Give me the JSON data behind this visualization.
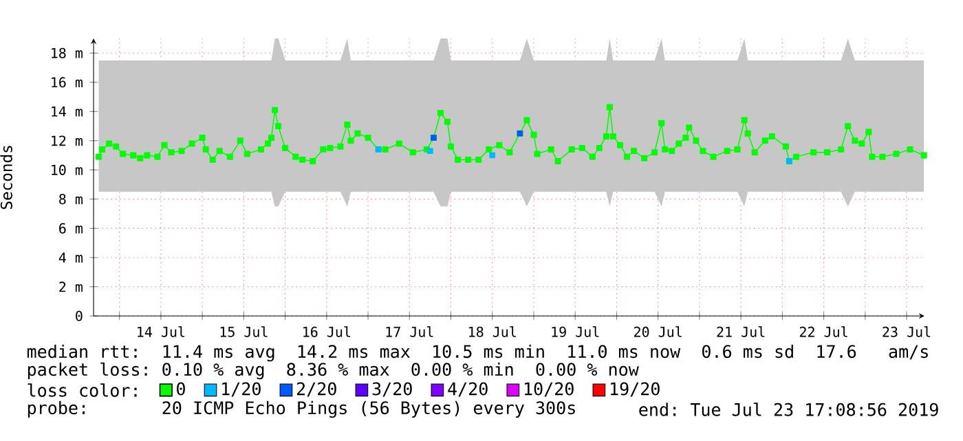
{
  "chart_data": {
    "type": "line",
    "ylabel": "Seconds",
    "legend_title": "loss color:",
    "annotations": [
      "median rtt:  11.4 ms avg  14.2 ms max  10.5 ms min  11.0 ms now  0.6 ms sd  17.6   am/s",
      "packet loss: 0.10 % avg  8.36 % max  0.00 % min  0.00 % now",
      "probe:       20 ICMP Echo Pings (56 Bytes) every 300s",
      "end: Tue Jul 23 17:08:56 2019"
    ],
    "xlim": [
      "2019-07-13T16:30",
      "2019-07-23T17:10"
    ],
    "ylim": [
      0,
      19
    ],
    "xticks": [
      {
        "value": "2019-07-14T00:00",
        "label": null
      },
      {
        "value": "2019-07-14T12:00",
        "label": "14 Jul"
      },
      {
        "value": "2019-07-15T00:00",
        "label": null
      },
      {
        "value": "2019-07-15T12:00",
        "label": "15 Jul"
      },
      {
        "value": "2019-07-16T00:00",
        "label": null
      },
      {
        "value": "2019-07-16T12:00",
        "label": "16 Jul"
      },
      {
        "value": "2019-07-17T00:00",
        "label": null
      },
      {
        "value": "2019-07-17T12:00",
        "label": "17 Jul"
      },
      {
        "value": "2019-07-18T00:00",
        "label": null
      },
      {
        "value": "2019-07-18T12:00",
        "label": "18 Jul"
      },
      {
        "value": "2019-07-19T00:00",
        "label": null
      },
      {
        "value": "2019-07-19T12:00",
        "label": "19 Jul"
      },
      {
        "value": "2019-07-20T00:00",
        "label": null
      },
      {
        "value": "2019-07-20T12:00",
        "label": "20 Jul"
      },
      {
        "value": "2019-07-21T00:00",
        "label": null
      },
      {
        "value": "2019-07-21T12:00",
        "label": "21 Jul"
      },
      {
        "value": "2019-07-22T00:00",
        "label": null
      },
      {
        "value": "2019-07-22T12:00",
        "label": "22 Jul"
      },
      {
        "value": "2019-07-23T00:00",
        "label": null
      },
      {
        "value": "2019-07-23T12:00",
        "label": "23 Jul"
      }
    ],
    "yticks": [
      0,
      {
        "value": 2,
        "label": "2 m"
      },
      {
        "value": 4,
        "label": "4 m"
      },
      {
        "value": 6,
        "label": "6 m"
      },
      {
        "value": 8,
        "label": "8 m"
      },
      {
        "value": 10,
        "label": "10 m"
      },
      {
        "value": 12,
        "label": "12 m"
      },
      {
        "value": 14,
        "label": "14 m"
      },
      {
        "value": 16,
        "label": "16 m"
      },
      {
        "value": 18,
        "label": "18 m"
      }
    ],
    "grid": true,
    "legend": "bottom",
    "marker": "square",
    "line_style": "solid",
    "series": [
      {
        "name": "0",
        "color": "#00ff00",
        "x": [
          "2019-07-13T18:00",
          "2019-07-13T19:00",
          "2019-07-13T21:00",
          "2019-07-13T23:00",
          "2019-07-14T01:00",
          "2019-07-14T04:00",
          "2019-07-14T06:00",
          "2019-07-14T08:00",
          "2019-07-14T11:00",
          "2019-07-14T13:00",
          "2019-07-14T15:00",
          "2019-07-14T18:00",
          "2019-07-14T21:00",
          "2019-07-15T00:00",
          "2019-07-15T01:00",
          "2019-07-15T03:00",
          "2019-07-15T05:00",
          "2019-07-15T08:00",
          "2019-07-15T11:00",
          "2019-07-15T13:00",
          "2019-07-15T17:00",
          "2019-07-15T19:00",
          "2019-07-15T20:00",
          "2019-07-15T21:00",
          "2019-07-15T22:00",
          "2019-07-16T00:00",
          "2019-07-16T03:00",
          "2019-07-16T05:00",
          "2019-07-16T08:00",
          "2019-07-16T11:00",
          "2019-07-16T13:00",
          "2019-07-16T16:00",
          "2019-07-16T18:00",
          "2019-07-16T19:00",
          "2019-07-16T21:00",
          "2019-07-17T00:00",
          "2019-07-17T03:00",
          "2019-07-17T05:00",
          "2019-07-17T09:00",
          "2019-07-17T13:00",
          "2019-07-17T17:00",
          "2019-07-17T19:00",
          "2019-07-17T21:00",
          "2019-07-17T23:00",
          "2019-07-18T00:00",
          "2019-07-18T02:00",
          "2019-07-18T05:00",
          "2019-07-18T08:00",
          "2019-07-18T11:00",
          "2019-07-18T14:00",
          "2019-07-18T17:00",
          "2019-07-18T20:00",
          "2019-07-18T22:00",
          "2019-07-19T00:00",
          "2019-07-19T01:00",
          "2019-07-19T05:00",
          "2019-07-19T07:00",
          "2019-07-19T11:00",
          "2019-07-19T14:00",
          "2019-07-19T17:00",
          "2019-07-19T19:00",
          "2019-07-19T21:00",
          "2019-07-19T22:00",
          "2019-07-19T23:00",
          "2019-07-20T01:00",
          "2019-07-20T03:00",
          "2019-07-20T05:00",
          "2019-07-20T08:00",
          "2019-07-20T11:00",
          "2019-07-20T13:00",
          "2019-07-20T14:00",
          "2019-07-20T16:00",
          "2019-07-20T18:00",
          "2019-07-20T20:00",
          "2019-07-20T21:00",
          "2019-07-20T23:00",
          "2019-07-21T01:00",
          "2019-07-21T04:00",
          "2019-07-21T08:00",
          "2019-07-21T11:00",
          "2019-07-21T13:00",
          "2019-07-21T14:00",
          "2019-07-21T16:00",
          "2019-07-21T19:00",
          "2019-07-21T21:00",
          "2019-07-22T01:00",
          "2019-07-22T02:00",
          "2019-07-22T04:00",
          "2019-07-22T09:00",
          "2019-07-22T13:00",
          "2019-07-22T17:00",
          "2019-07-22T19:00",
          "2019-07-22T21:00",
          "2019-07-22T23:00",
          "2019-07-23T01:00",
          "2019-07-23T02:00",
          "2019-07-23T05:00",
          "2019-07-23T09:00",
          "2019-07-23T13:00",
          "2019-07-23T17:00"
        ],
        "values": [
          10.9,
          11.4,
          11.8,
          11.6,
          11.1,
          11.0,
          10.8,
          11.0,
          10.9,
          11.7,
          11.2,
          11.3,
          11.8,
          12.2,
          11.4,
          10.7,
          11.3,
          10.9,
          12.0,
          11.1,
          11.4,
          11.8,
          12.2,
          14.1,
          13.0,
          11.5,
          10.9,
          10.7,
          10.6,
          11.4,
          11.5,
          11.6,
          13.1,
          12.0,
          12.5,
          12.2,
          11.4,
          11.4,
          11.8,
          11.2,
          11.4,
          12.2,
          13.9,
          13.3,
          11.6,
          10.7,
          10.7,
          10.7,
          11.4,
          11.7,
          11.2,
          12.5,
          13.4,
          12.4,
          11.1,
          11.4,
          10.6,
          11.4,
          11.5,
          10.9,
          11.5,
          12.3,
          14.3,
          12.3,
          11.7,
          10.9,
          11.3,
          10.8,
          11.2,
          13.2,
          11.4,
          11.3,
          11.8,
          12.2,
          12.9,
          12.0,
          11.3,
          10.9,
          11.3,
          11.4,
          13.4,
          12.5,
          11.2,
          12.0,
          12.3,
          11.6,
          10.6,
          10.9,
          11.2,
          11.2,
          11.4,
          13.0,
          12.0,
          11.8,
          12.6,
          10.9,
          10.9,
          11.1,
          11.4,
          11.0
        ],
        "lower": [
          8.5,
          8.5,
          8.5,
          8.5,
          8.5,
          8.5,
          8.5,
          8.5,
          8.5,
          8.5,
          8.5,
          8.5,
          8.5,
          8.5,
          8.5,
          8.5,
          8.5,
          8.5,
          8.5,
          8.5,
          8.5,
          8.5,
          8.5,
          7.5,
          7.5,
          8.5,
          8.5,
          8.5,
          8.5,
          8.5,
          8.5,
          8.5,
          7.5,
          8.5,
          8.5,
          8.5,
          8.5,
          8.5,
          8.5,
          8.5,
          8.5,
          8.5,
          7.5,
          7.5,
          8.5,
          8.5,
          8.5,
          8.5,
          8.5,
          8.5,
          8.5,
          8.5,
          7.5,
          8.5,
          8.5,
          8.5,
          8.5,
          8.5,
          8.5,
          8.5,
          8.5,
          8.5,
          7.5,
          8.5,
          8.5,
          8.5,
          8.5,
          8.5,
          8.5,
          7.5,
          8.5,
          8.5,
          8.5,
          8.5,
          8.5,
          8.5,
          8.5,
          8.5,
          8.5,
          8.5,
          7.5,
          8.5,
          8.5,
          8.5,
          8.5,
          8.5,
          8.5,
          8.5,
          8.5,
          8.5,
          8.5,
          7.5,
          8.5,
          8.5,
          8.5,
          8.5,
          8.5,
          8.5,
          8.5,
          8.5
        ],
        "upper": [
          17.5,
          17.5,
          17.5,
          17.5,
          17.5,
          17.5,
          17.5,
          17.5,
          17.5,
          17.5,
          17.5,
          17.5,
          17.5,
          17.5,
          17.5,
          17.5,
          17.5,
          17.5,
          17.5,
          17.5,
          17.5,
          17.5,
          17.5,
          19,
          19,
          17.5,
          17.5,
          17.5,
          17.5,
          17.5,
          17.5,
          17.5,
          19,
          17.5,
          17.5,
          17.5,
          17.5,
          17.5,
          17.5,
          17.5,
          17.5,
          17.5,
          19,
          19,
          17.5,
          17.5,
          17.5,
          17.5,
          17.5,
          17.5,
          17.5,
          17.5,
          19,
          17.5,
          17.5,
          17.5,
          17.5,
          17.5,
          17.5,
          17.5,
          17.5,
          17.5,
          19,
          17.5,
          17.5,
          17.5,
          17.5,
          17.5,
          17.5,
          19,
          17.5,
          17.5,
          17.5,
          17.5,
          17.5,
          17.5,
          17.5,
          17.5,
          17.5,
          17.5,
          19,
          17.5,
          17.5,
          17.5,
          17.5,
          17.5,
          17.5,
          17.5,
          17.5,
          17.5,
          17.5,
          19,
          17.5,
          17.5,
          17.5,
          17.5,
          17.5,
          17.5,
          17.5,
          17.5
        ]
      },
      {
        "name": "1/20",
        "color": "#00b8ff",
        "type": "scatter",
        "x": [
          "2019-07-17T03:00",
          "2019-07-17T18:00",
          "2019-07-18T12:00",
          "2019-07-22T02:00"
        ],
        "values": [
          11.4,
          11.3,
          11.0,
          10.6
        ]
      },
      {
        "name": "2/20",
        "color": "#0059ff",
        "type": "scatter",
        "x": [
          "2019-07-17T19:00",
          "2019-07-18T20:00"
        ],
        "values": [
          12.2,
          12.5
        ]
      },
      {
        "name": "3/20",
        "color": "#5e00ff",
        "type": "scatter"
      },
      {
        "name": "4/20",
        "color": "#7e00ff",
        "type": "scatter"
      },
      {
        "name": "10/20",
        "color": "#dd00ff",
        "type": "scatter"
      },
      {
        "name": "19/20",
        "color": "#ff0000",
        "type": "scatter"
      }
    ]
  }
}
